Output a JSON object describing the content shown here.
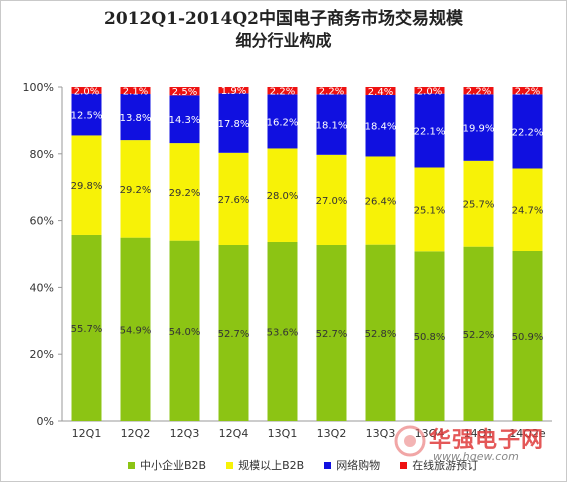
{
  "title": {
    "line1": "2012Q1-2014Q2中国电子商务市场交易规模",
    "line2": "细分行业构成"
  },
  "colors": {
    "b2b_sme": "#8cc414",
    "b2b_large": "#f7f207",
    "online_shopping": "#1010e0",
    "online_travel": "#ee1111"
  },
  "legend": [
    {
      "label": "中小企业B2B",
      "color": "#8cc414"
    },
    {
      "label": "规模以上B2B",
      "color": "#f7f207"
    },
    {
      "label": "网络购物",
      "color": "#1010e0"
    },
    {
      "label": "在线旅游预订",
      "color": "#ee1111"
    }
  ],
  "watermark": {
    "text": "华强电子网",
    "url": "www.hqew.com"
  },
  "chart_data": {
    "type": "bar",
    "stacked": true,
    "categories": [
      "12Q1",
      "12Q2",
      "12Q3",
      "12Q4",
      "13Q1",
      "13Q2",
      "13Q3",
      "13Q4",
      "14Q1",
      "14Q2e"
    ],
    "ylim": [
      0,
      100
    ],
    "yticks": [
      "0%",
      "20%",
      "40%",
      "60%",
      "80%",
      "100%"
    ],
    "series": [
      {
        "name": "中小企业B2B",
        "color": "#8cc414",
        "values": [
          55.7,
          54.9,
          54.0,
          52.7,
          53.6,
          52.7,
          52.8,
          50.8,
          52.2,
          50.9
        ],
        "labels": [
          "55.7%",
          "54.9%",
          "54.0%",
          "52.7%",
          "53.6%",
          "52.7%",
          "52.8%",
          "50.8%",
          "52.2%",
          "50.9%"
        ]
      },
      {
        "name": "规模以上B2B",
        "color": "#f7f207",
        "values": [
          29.8,
          29.2,
          29.2,
          27.6,
          28.0,
          27.0,
          26.4,
          25.1,
          25.7,
          24.7
        ],
        "labels": [
          "29.8%",
          "29.2%",
          "29.2%",
          "27.6%",
          "28.0%",
          "27.0%",
          "26.4%",
          "25.1%",
          "25.7%",
          "24.7%"
        ]
      },
      {
        "name": "网络购物",
        "color": "#1010e0",
        "values": [
          12.5,
          13.8,
          14.3,
          17.8,
          16.2,
          18.1,
          18.4,
          22.1,
          19.9,
          22.2
        ],
        "labels": [
          "12.5%",
          "13.8%",
          "14.3%",
          "17.8%",
          "16.2%",
          "18.1%",
          "18.4%",
          "22.1%",
          "19.9%",
          "22.2%"
        ]
      },
      {
        "name": "在线旅游预订",
        "color": "#ee1111",
        "values": [
          2.0,
          2.1,
          2.5,
          1.9,
          2.2,
          2.2,
          2.4,
          2.0,
          2.2,
          2.2
        ],
        "labels": [
          "2.0%",
          "2.1%",
          "2.5%",
          "1.9%",
          "2.2%",
          "2.2%",
          "2.4%",
          "2.0%",
          "2.2%",
          "2.2%"
        ]
      }
    ],
    "grid": false,
    "legend_position": "bottom"
  }
}
